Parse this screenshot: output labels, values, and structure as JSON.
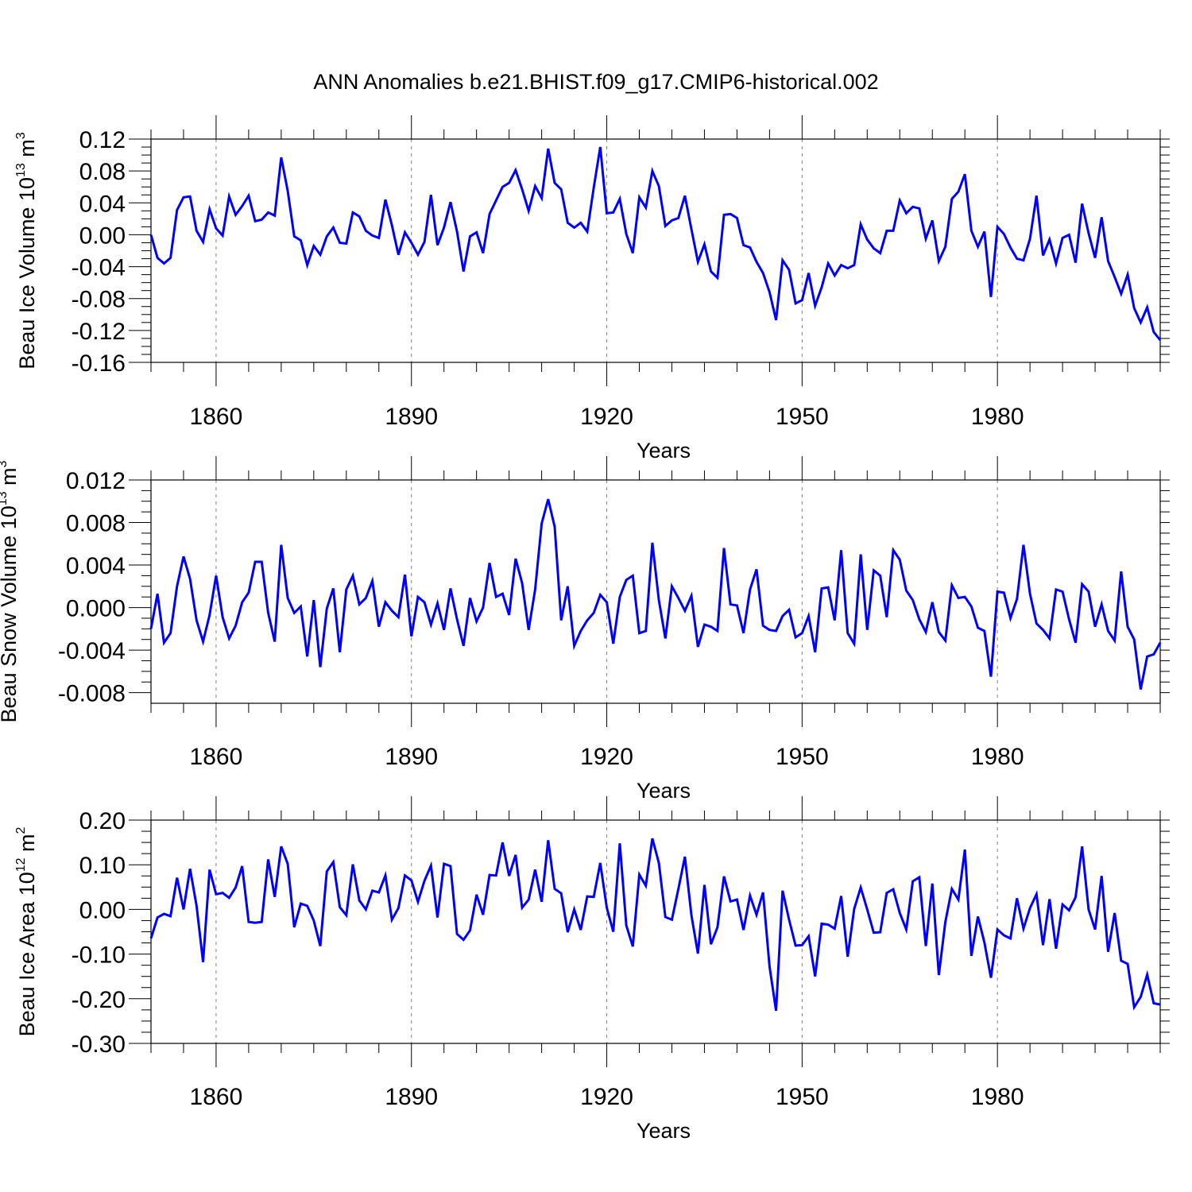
{
  "page_title": "ANN Anomalies b.e21.BHIST.f09_g17.CMIP6-historical.002",
  "colors": {
    "line": "#0000ff",
    "grid": "#808080",
    "axis": "#000000"
  },
  "chart_data": [
    {
      "type": "line",
      "ylabel_main": "Beau Ice Volume 10",
      "ylabel_exp": "13",
      "ylabel_unit": " m",
      "ylabel_unit_exp": "3",
      "xlabel": "Years",
      "xlim": [
        1850,
        2005
      ],
      "ylim": [
        -0.16,
        0.12
      ],
      "ytick_values": [
        0.12,
        0.08,
        0.04,
        0.0,
        -0.04,
        -0.08,
        -0.12,
        -0.16
      ],
      "ytick_labels": [
        "0.12",
        "0.08",
        "0.04",
        "0.00",
        "-0.04",
        "-0.08",
        "-0.12",
        "-0.16"
      ],
      "xtick_values": [
        1860,
        1890,
        1920,
        1950,
        1980
      ],
      "xtick_labels": [
        "1860",
        "1890",
        "1920",
        "1950",
        "1980"
      ],
      "x_start": 1850,
      "values": [
        0.0,
        -0.029,
        -0.036,
        -0.029,
        0.031,
        0.047,
        0.048,
        0.005,
        -0.009,
        0.032,
        0.008,
        -0.001,
        0.048,
        0.025,
        0.036,
        0.049,
        0.017,
        0.019,
        0.028,
        0.024,
        0.097,
        0.055,
        -0.002,
        -0.007,
        -0.038,
        -0.014,
        -0.025,
        -0.002,
        0.009,
        -0.01,
        -0.011,
        0.028,
        0.023,
        0.005,
        -0.001,
        -0.004,
        0.044,
        0.012,
        -0.025,
        0.003,
        -0.01,
        -0.025,
        -0.009,
        0.05,
        -0.013,
        0.009,
        0.041,
        0.004,
        -0.046,
        -0.002,
        0.003,
        -0.023,
        0.026,
        0.043,
        0.06,
        0.065,
        0.081,
        0.057,
        0.03,
        0.061,
        0.046,
        0.108,
        0.065,
        0.057,
        0.015,
        0.009,
        0.015,
        0.004,
        0.059,
        0.11,
        0.027,
        0.028,
        0.045,
        0.001,
        -0.023,
        0.047,
        0.034,
        0.08,
        0.061,
        0.011,
        0.018,
        0.021,
        0.049,
        0.007,
        -0.034,
        -0.012,
        -0.046,
        -0.054,
        0.025,
        0.026,
        0.021,
        -0.013,
        -0.016,
        -0.034,
        -0.048,
        -0.072,
        -0.107,
        -0.032,
        -0.044,
        -0.086,
        -0.082,
        -0.048,
        -0.089,
        -0.066,
        -0.036,
        -0.051,
        -0.038,
        -0.042,
        -0.038,
        0.013,
        -0.006,
        -0.017,
        -0.023,
        0.005,
        0.005,
        0.043,
        0.027,
        0.035,
        0.033,
        -0.005,
        0.018,
        -0.033,
        -0.015,
        0.045,
        0.054,
        0.076,
        0.005,
        -0.015,
        0.004,
        -0.078,
        0.01,
        0.001,
        -0.016,
        -0.03,
        -0.032,
        -0.005,
        0.049,
        -0.026,
        -0.006,
        -0.036,
        -0.004,
        0.0,
        -0.035,
        0.039,
        0.002,
        -0.029,
        0.022,
        -0.033,
        -0.053,
        -0.074,
        -0.05,
        -0.092,
        -0.11,
        -0.091,
        -0.122,
        -0.132
      ]
    },
    {
      "type": "line",
      "ylabel_main": "Beau Snow Volume 10",
      "ylabel_exp": "13",
      "ylabel_unit": " m",
      "ylabel_unit_exp": "3",
      "xlabel": "Years",
      "xlim": [
        1850,
        2005
      ],
      "ylim": [
        -0.009,
        0.012
      ],
      "ytick_values": [
        0.012,
        0.008,
        0.004,
        0.0,
        -0.004,
        -0.008
      ],
      "ytick_labels": [
        "0.012",
        "0.008",
        "0.004",
        "0.000",
        "-0.004",
        "-0.008"
      ],
      "xtick_values": [
        1860,
        1890,
        1920,
        1950,
        1980
      ],
      "xtick_labels": [
        "1860",
        "1890",
        "1920",
        "1950",
        "1980"
      ],
      "x_start": 1850,
      "values": [
        -0.002,
        0.0013,
        -0.0033,
        -0.0024,
        0.002,
        0.0048,
        0.0027,
        -0.0012,
        -0.0032,
        -0.0007,
        0.003,
        -0.0009,
        -0.0029,
        -0.0017,
        0.0005,
        0.0014,
        0.0043,
        0.0043,
        -0.0005,
        -0.0032,
        0.0059,
        0.0009,
        -0.0005,
        0.0001,
        -0.0046,
        0.0007,
        -0.0056,
        -0.0001,
        0.0018,
        -0.0042,
        0.0017,
        0.003,
        0.0003,
        0.0009,
        0.0025,
        -0.0018,
        0.0005,
        -0.0003,
        -0.0009,
        0.0031,
        -0.0027,
        0.001,
        0.0005,
        -0.0016,
        0.0004,
        -0.0021,
        0.0018,
        -0.0011,
        -0.0036,
        0.0009,
        -0.0013,
        0.0,
        0.0042,
        0.001,
        0.0013,
        -0.0007,
        0.0046,
        0.0023,
        -0.0021,
        0.0017,
        0.0079,
        0.0102,
        0.0076,
        -0.0012,
        0.002,
        -0.0036,
        -0.0022,
        -0.0012,
        -0.0005,
        0.0012,
        0.0005,
        -0.0034,
        0.001,
        0.0026,
        0.003,
        -0.0024,
        -0.0022,
        0.0061,
        0.0007,
        -0.0029,
        0.002,
        0.0009,
        -0.0003,
        0.0011,
        -0.0037,
        -0.0016,
        -0.0018,
        -0.0022,
        0.0056,
        0.0003,
        0.0002,
        -0.0024,
        0.0017,
        0.0036,
        -0.0017,
        -0.0021,
        -0.0022,
        -0.0008,
        -0.0002,
        -0.0028,
        -0.0024,
        -0.0008,
        -0.0042,
        0.0018,
        0.0019,
        -0.0012,
        0.0054,
        -0.0024,
        -0.0034,
        0.005,
        -0.0021,
        0.0035,
        0.003,
        -0.0009,
        0.0054,
        0.0045,
        0.0016,
        0.0007,
        -0.0011,
        -0.0023,
        0.0005,
        -0.0023,
        -0.0031,
        0.0021,
        0.0009,
        0.001,
        0.0001,
        -0.0019,
        -0.0022,
        -0.0065,
        0.0015,
        0.0014,
        -0.001,
        0.0008,
        0.0059,
        0.0013,
        -0.0015,
        -0.0021,
        -0.0029,
        0.0017,
        0.0015,
        -0.0011,
        -0.0033,
        0.0022,
        0.0015,
        -0.0018,
        0.0003,
        -0.0022,
        -0.0031,
        0.0034,
        -0.0018,
        -0.003,
        -0.0077,
        -0.0046,
        -0.0044,
        -0.0033
      ]
    },
    {
      "type": "line",
      "ylabel_main": "Beau Ice Area 10",
      "ylabel_exp": "12",
      "ylabel_unit": " m",
      "ylabel_unit_exp": "2",
      "xlabel": "Years",
      "xlim": [
        1850,
        2005
      ],
      "ylim": [
        -0.3,
        0.2
      ],
      "ytick_values": [
        0.2,
        0.1,
        0.0,
        -0.1,
        -0.2,
        -0.3
      ],
      "ytick_labels": [
        "0.20",
        "0.10",
        "0.00",
        "-0.10",
        "-0.20",
        "-0.30"
      ],
      "xtick_values": [
        1860,
        1890,
        1920,
        1950,
        1980
      ],
      "xtick_labels": [
        "1860",
        "1890",
        "1920",
        "1950",
        "1980"
      ],
      "x_start": 1850,
      "values": [
        -0.065,
        -0.018,
        -0.01,
        -0.015,
        0.071,
        0.0,
        0.091,
        0.008,
        -0.118,
        0.089,
        0.034,
        0.037,
        0.026,
        0.049,
        0.097,
        -0.028,
        -0.03,
        -0.028,
        0.112,
        0.028,
        0.141,
        0.102,
        -0.04,
        0.013,
        0.008,
        -0.025,
        -0.082,
        0.085,
        0.106,
        0.005,
        -0.013,
        0.101,
        0.02,
        0.0,
        0.042,
        0.038,
        0.076,
        -0.023,
        0.003,
        0.076,
        0.065,
        0.017,
        0.064,
        0.098,
        -0.018,
        0.102,
        0.097,
        -0.055,
        -0.068,
        -0.047,
        0.033,
        -0.012,
        0.077,
        0.076,
        0.15,
        0.075,
        0.122,
        0.004,
        0.022,
        0.089,
        0.017,
        0.155,
        0.046,
        0.036,
        -0.051,
        0.0,
        -0.046,
        0.029,
        0.028,
        0.104,
        0.004,
        -0.05,
        0.148,
        -0.036,
        -0.083,
        0.078,
        0.053,
        0.159,
        0.104,
        -0.017,
        -0.023,
        0.046,
        0.118,
        -0.013,
        -0.099,
        0.055,
        -0.078,
        -0.04,
        0.074,
        0.018,
        0.022,
        -0.046,
        0.031,
        -0.012,
        0.038,
        -0.128,
        -0.227,
        0.042,
        -0.023,
        -0.081,
        -0.08,
        -0.06,
        -0.15,
        -0.032,
        -0.034,
        -0.043,
        0.03,
        -0.106,
        0.001,
        0.049,
        0.0,
        -0.052,
        -0.051,
        0.037,
        0.045,
        -0.008,
        -0.045,
        0.063,
        0.072,
        -0.082,
        0.058,
        -0.147,
        -0.028,
        0.046,
        0.022,
        0.134,
        -0.104,
        -0.016,
        -0.074,
        -0.153,
        -0.045,
        -0.058,
        -0.065,
        0.025,
        -0.043,
        0.003,
        0.034,
        -0.08,
        0.023,
        -0.088,
        0.011,
        -0.002,
        0.027,
        0.141,
        0.0,
        -0.045,
        0.075,
        -0.095,
        -0.008,
        -0.115,
        -0.122,
        -0.219,
        -0.196,
        -0.146,
        -0.21,
        -0.213
      ]
    }
  ]
}
